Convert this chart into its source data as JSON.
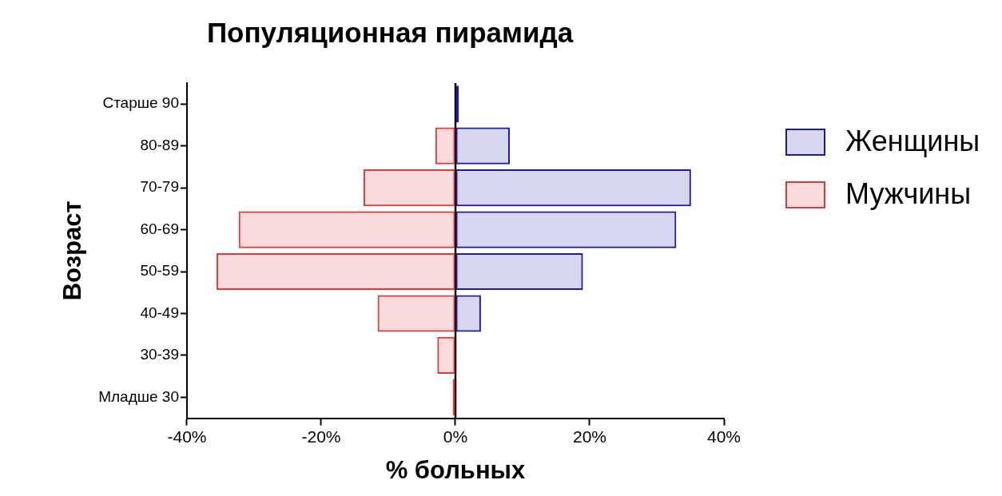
{
  "chart_data": {
    "type": "bar",
    "orientation": "horizontal",
    "stacked": true,
    "title": "Популяционная пирамида",
    "xlabel": "% больных",
    "ylabel": "Возраст",
    "categories": [
      "Старше 90",
      "80-89",
      "70-79",
      "60-69",
      "50-59",
      "40-49",
      "30-39",
      "Младше 30"
    ],
    "series": [
      {
        "name": "Женщины",
        "color": "#1c1ca0",
        "values": [
          0.5,
          8.1,
          35.1,
          32.9,
          19.0,
          3.8,
          null,
          null
        ]
      },
      {
        "name": "Мужчины",
        "color": "#e03a3a",
        "values": [
          null,
          -3.0,
          -13.7,
          -32.3,
          -35.6,
          -11.6,
          -2.7,
          -0.4
        ]
      }
    ],
    "xlim": [
      -40,
      40
    ],
    "xticks": [
      {
        "value": -40,
        "label": "-40%"
      },
      {
        "value": -20,
        "label": "-20%"
      },
      {
        "value": 0,
        "label": "0%"
      },
      {
        "value": 20,
        "label": "20%"
      },
      {
        "value": 40,
        "label": "40%"
      }
    ],
    "ref_lines": [
      {
        "axis": "x",
        "value": 0,
        "color": "#000000"
      }
    ],
    "grid": false,
    "legend": "top right"
  }
}
